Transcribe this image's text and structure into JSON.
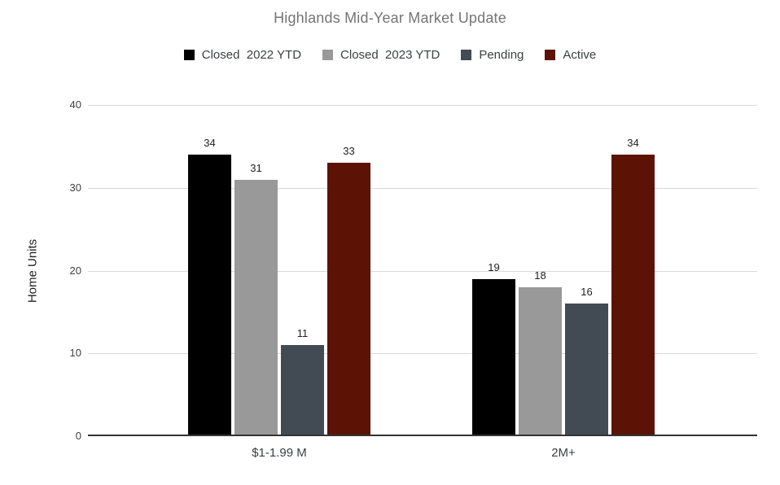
{
  "chart_data": {
    "type": "bar",
    "title": "Highlands Mid-Year Market Update",
    "categories": [
      "$1-1.99 M",
      "2M+"
    ],
    "series": [
      {
        "name": "Closed  2022 YTD",
        "color": "#000000",
        "values": [
          34,
          19
        ]
      },
      {
        "name": "Closed  2023 YTD",
        "color": "#999999",
        "values": [
          31,
          18
        ]
      },
      {
        "name": "Pending",
        "color": "#424a54",
        "values": [
          11,
          16
        ]
      },
      {
        "name": "Active",
        "color": "#5c1204",
        "values": [
          33,
          34
        ]
      }
    ],
    "xlabel": "",
    "ylabel": "Home Units",
    "ylim": [
      0,
      40
    ],
    "yticks": [
      0,
      10,
      20,
      30,
      40
    ],
    "grid": true,
    "legend_position": "top",
    "data_labels": true,
    "colors": {
      "title_text": "#757575",
      "legend_text": "#3c4043",
      "axis_text": "#424242",
      "data_label_text": "#1f1f1f",
      "gridline": "#d9d9d9",
      "baseline": "#333333",
      "background": "#ffffff"
    }
  }
}
